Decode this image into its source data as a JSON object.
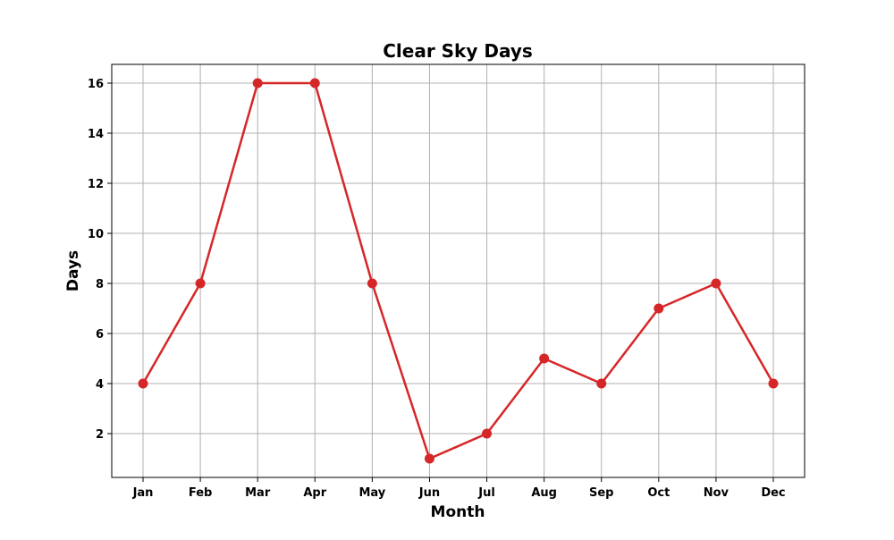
{
  "chart_data": {
    "type": "line",
    "title": "Clear Sky Days",
    "xlabel": "Month",
    "ylabel": "Days",
    "categories": [
      "Jan",
      "Feb",
      "Mar",
      "Apr",
      "May",
      "Jun",
      "Jul",
      "Aug",
      "Sep",
      "Oct",
      "Nov",
      "Dec"
    ],
    "series": [
      {
        "values": [
          4,
          8,
          16,
          16,
          8,
          1,
          2,
          5,
          4,
          7,
          8,
          4
        ],
        "color": "#d62728"
      }
    ],
    "yticks": [
      2,
      4,
      6,
      8,
      10,
      12,
      14,
      16
    ],
    "ylim": [
      0.25,
      16.75
    ],
    "grid": true,
    "legend": "none"
  }
}
